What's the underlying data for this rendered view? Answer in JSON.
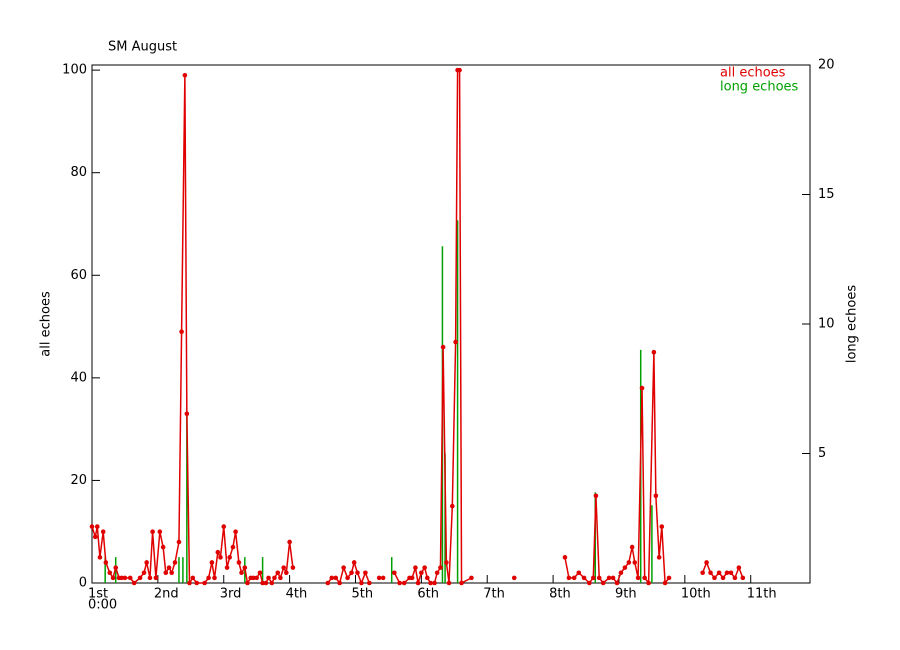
{
  "chart_data": {
    "type": "line",
    "title": "SM August",
    "ylabel": "all echoes",
    "y2label": "long echoes",
    "xlim": [
      0,
      10.9
    ],
    "ylim": [
      0,
      101
    ],
    "y2lim": [
      0,
      20
    ],
    "xticks": [
      {
        "value": 0,
        "label": "1st"
      },
      {
        "value": 1,
        "label": "2nd"
      },
      {
        "value": 2,
        "label": "3rd"
      },
      {
        "value": 3,
        "label": "4th"
      },
      {
        "value": 4,
        "label": "5th"
      },
      {
        "value": 5,
        "label": "6th"
      },
      {
        "value": 6,
        "label": "7th"
      },
      {
        "value": 7,
        "label": "8th"
      },
      {
        "value": 8,
        "label": "9th"
      },
      {
        "value": 9,
        "label": "10th"
      },
      {
        "value": 10,
        "label": "11th"
      }
    ],
    "x_origin_sublabel": "0:00",
    "yticks": [
      0,
      20,
      40,
      60,
      80,
      100
    ],
    "y2ticks": [
      5,
      10,
      15,
      20
    ],
    "legend": "upper right",
    "series": [
      {
        "name": "all echoes",
        "color": "#e00000",
        "type": "line",
        "x": [
          0,
          0.05,
          0.08,
          0.12,
          0.17,
          0.21,
          0.27,
          0.32,
          0.36,
          0.41,
          0.45,
          0.5,
          0.58,
          0.64,
          0.73,
          0.79,
          0.83,
          0.88,
          0.92,
          0.97,
          1.03,
          1.08,
          1.12,
          1.17,
          1.21,
          1.26,
          1.32,
          1.36,
          1.41,
          1.44,
          1.48,
          1.53,
          1.59,
          1.71,
          1.77,
          1.82,
          1.86,
          1.91,
          1.95,
          2.0,
          2.05,
          2.09,
          2.14,
          2.18,
          2.23,
          2.27,
          2.32,
          2.36,
          2.41,
          2.45,
          2.5,
          2.55,
          2.59,
          2.64,
          2.68,
          2.73,
          2.77,
          2.82,
          2.86,
          2.91,
          2.95,
          3.0,
          3.05,
          3.3,
          3.58,
          3.64,
          3.7,
          3.76,
          3.82,
          3.88,
          3.94,
          3.98,
          4.03,
          4.09,
          4.15,
          4.21,
          4.3,
          4.36,
          4.42,
          4.5,
          4.59,
          4.67,
          4.74,
          4.82,
          4.86,
          4.91,
          4.95,
          5.0,
          5.05,
          5.09,
          5.14,
          5.2,
          5.24,
          5.29,
          5.33,
          5.38,
          5.42,
          5.47,
          5.52,
          5.55,
          5.58,
          5.61,
          5.76,
          6.1,
          6.41,
          6.8,
          7.18,
          7.24,
          7.32,
          7.39,
          7.47,
          7.55,
          7.61,
          7.65,
          7.7,
          7.76,
          7.85,
          7.91,
          7.97,
          8.03,
          8.09,
          8.15,
          8.2,
          8.24,
          8.29,
          8.35,
          8.39,
          8.45,
          8.53,
          8.56,
          8.61,
          8.65,
          8.7,
          8.76,
          9.0,
          9.27,
          9.33,
          9.39,
          9.45,
          9.52,
          9.58,
          9.64,
          9.7,
          9.76,
          9.82,
          9.88
        ],
        "values": [
          11,
          9,
          11,
          5,
          10,
          4,
          2,
          1,
          3,
          1,
          1,
          1,
          1,
          0,
          1,
          2,
          4,
          1,
          10,
          1,
          10,
          7,
          2,
          3,
          2,
          4,
          8,
          49,
          99,
          33,
          0,
          1,
          0,
          0,
          1,
          4,
          1,
          6,
          5,
          11,
          3,
          5,
          7,
          10,
          4,
          2,
          3,
          0,
          1,
          1,
          1,
          2,
          0,
          0,
          1,
          0,
          1,
          2,
          1,
          3,
          2,
          8,
          3,
          null,
          0,
          1,
          1,
          0,
          3,
          1,
          2,
          4,
          2,
          0,
          2,
          0,
          null,
          1,
          1,
          null,
          2,
          0,
          0,
          1,
          1,
          3,
          0,
          2,
          3,
          1,
          0,
          0,
          2,
          3,
          46,
          4,
          0,
          15,
          47,
          100,
          100,
          0,
          1,
          null,
          1,
          null,
          5,
          1,
          1,
          2,
          1,
          0,
          1,
          17,
          1,
          0,
          1,
          1,
          0,
          2,
          3,
          4,
          7,
          4,
          1,
          38,
          1,
          0,
          45,
          17,
          5,
          11,
          0,
          1,
          null,
          2,
          4,
          2,
          1,
          2,
          1,
          2,
          2,
          1,
          3,
          1
        ]
      },
      {
        "name": "long echoes",
        "color": "#00a000",
        "type": "stem",
        "axis": "y2",
        "x": [
          0.2,
          0.36,
          1.32,
          1.38,
          1.44,
          2.32,
          2.59,
          4.55,
          5.32,
          5.36,
          5.55,
          7.64,
          8.33,
          8.5
        ],
        "values": [
          1,
          1,
          1,
          1,
          6.5,
          1,
          1,
          1,
          13,
          5,
          14,
          3.5,
          9,
          3
        ]
      }
    ]
  }
}
